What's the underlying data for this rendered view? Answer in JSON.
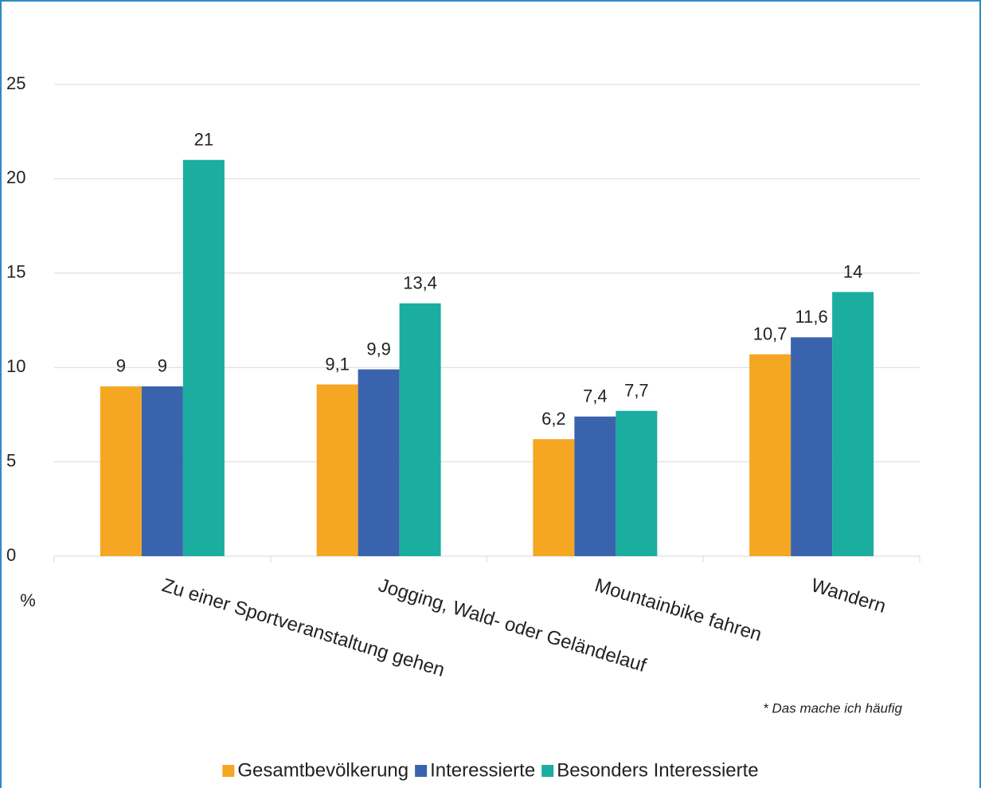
{
  "chart_data": {
    "type": "bar",
    "categories": [
      "Zu einer Sportveranstaltung gehen",
      "Jogging, Wald- oder Geländelauf",
      "Mountainbike fahren",
      "Wandern"
    ],
    "series": [
      {
        "name": "Gesamtbevölkerung",
        "color": "#f5a623",
        "values": [
          9,
          9.1,
          6.2,
          10.7
        ],
        "value_labels": [
          "9",
          "9,1",
          "6,2",
          "10,7"
        ]
      },
      {
        "name": "Interessierte",
        "color": "#3a63ad",
        "values": [
          9,
          9.9,
          7.4,
          11.6
        ],
        "value_labels": [
          "9",
          "9,9",
          "7,4",
          "11,6"
        ]
      },
      {
        "name": "Besonders Interessierte",
        "color": "#1aada0",
        "values": [
          21,
          13.4,
          7.7,
          14
        ],
        "value_labels": [
          "21",
          "13,4",
          "7,7",
          "14"
        ]
      }
    ],
    "ylabel": "%",
    "ylim": [
      0,
      25
    ],
    "yticks": [
      0,
      5,
      10,
      15,
      20,
      25
    ],
    "grid": true,
    "annotation": "* Das mache ich häufig",
    "legend": "bottom"
  }
}
